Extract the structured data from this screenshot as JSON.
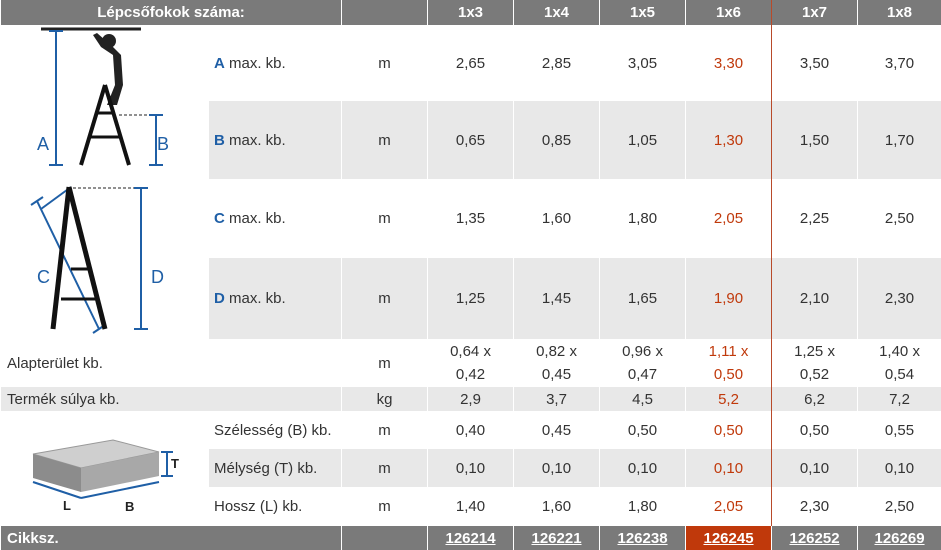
{
  "header": {
    "title": "Lépcsőfokok száma:",
    "columns": [
      "1x3",
      "1x4",
      "1x5",
      "1x6",
      "1x7",
      "1x8"
    ]
  },
  "rows": [
    {
      "letter": "A",
      "label": " max. kb.",
      "unit": "m",
      "values": [
        "2,65",
        "2,85",
        "3,05",
        "3,30",
        "3,50",
        "3,70"
      ]
    },
    {
      "letter": "B",
      "label": " max. kb.",
      "unit": "m",
      "values": [
        "0,65",
        "0,85",
        "1,05",
        "1,30",
        "1,50",
        "1,70"
      ]
    },
    {
      "letter": "C",
      "label": " max. kb.",
      "unit": "m",
      "values": [
        "1,35",
        "1,60",
        "1,80",
        "2,05",
        "2,25",
        "2,50"
      ]
    },
    {
      "letter": "D",
      "label": " max. kb.",
      "unit": "m",
      "values": [
        "1,25",
        "1,45",
        "1,65",
        "1,90",
        "2,10",
        "2,30"
      ]
    }
  ],
  "area": {
    "label": "Alapterület kb.",
    "unit": "m",
    "top": [
      "0,64 x",
      "0,82 x",
      "0,96 x",
      "1,11 x",
      "1,25 x",
      "1,40 x"
    ],
    "bottom": [
      "0,42",
      "0,45",
      "0,47",
      "0,50",
      "0,52",
      "0,54"
    ]
  },
  "weight": {
    "label": "Termék súlya kb.",
    "unit": "kg",
    "values": [
      "2,9",
      "3,7",
      "4,5",
      "5,2",
      "6,2",
      "7,2"
    ]
  },
  "package": [
    {
      "label": "Szélesség (B) kb.",
      "unit": "m",
      "values": [
        "0,40",
        "0,45",
        "0,50",
        "0,50",
        "0,50",
        "0,55"
      ]
    },
    {
      "label": "Mélység (T) kb.",
      "unit": "m",
      "values": [
        "0,10",
        "0,10",
        "0,10",
        "0,10",
        "0,10",
        "0,10"
      ]
    },
    {
      "label": "Hossz (L) kb.",
      "unit": "m",
      "values": [
        "1,40",
        "1,60",
        "1,80",
        "2,05",
        "2,30",
        "2,50"
      ]
    }
  ],
  "footer": {
    "label": "Cikksz.",
    "codes": [
      "126214",
      "126221",
      "126238",
      "126245",
      "126252",
      "126269"
    ]
  },
  "diagram_letters": {
    "a": "A",
    "b": "B",
    "c": "C",
    "d": "D",
    "t": "T",
    "l": "L",
    "b2": "B"
  },
  "colors": {
    "accent": "#c0390b",
    "header": "#7a7a7a",
    "stripe": "#e8e8e8",
    "letter": "#1f5fa6"
  }
}
